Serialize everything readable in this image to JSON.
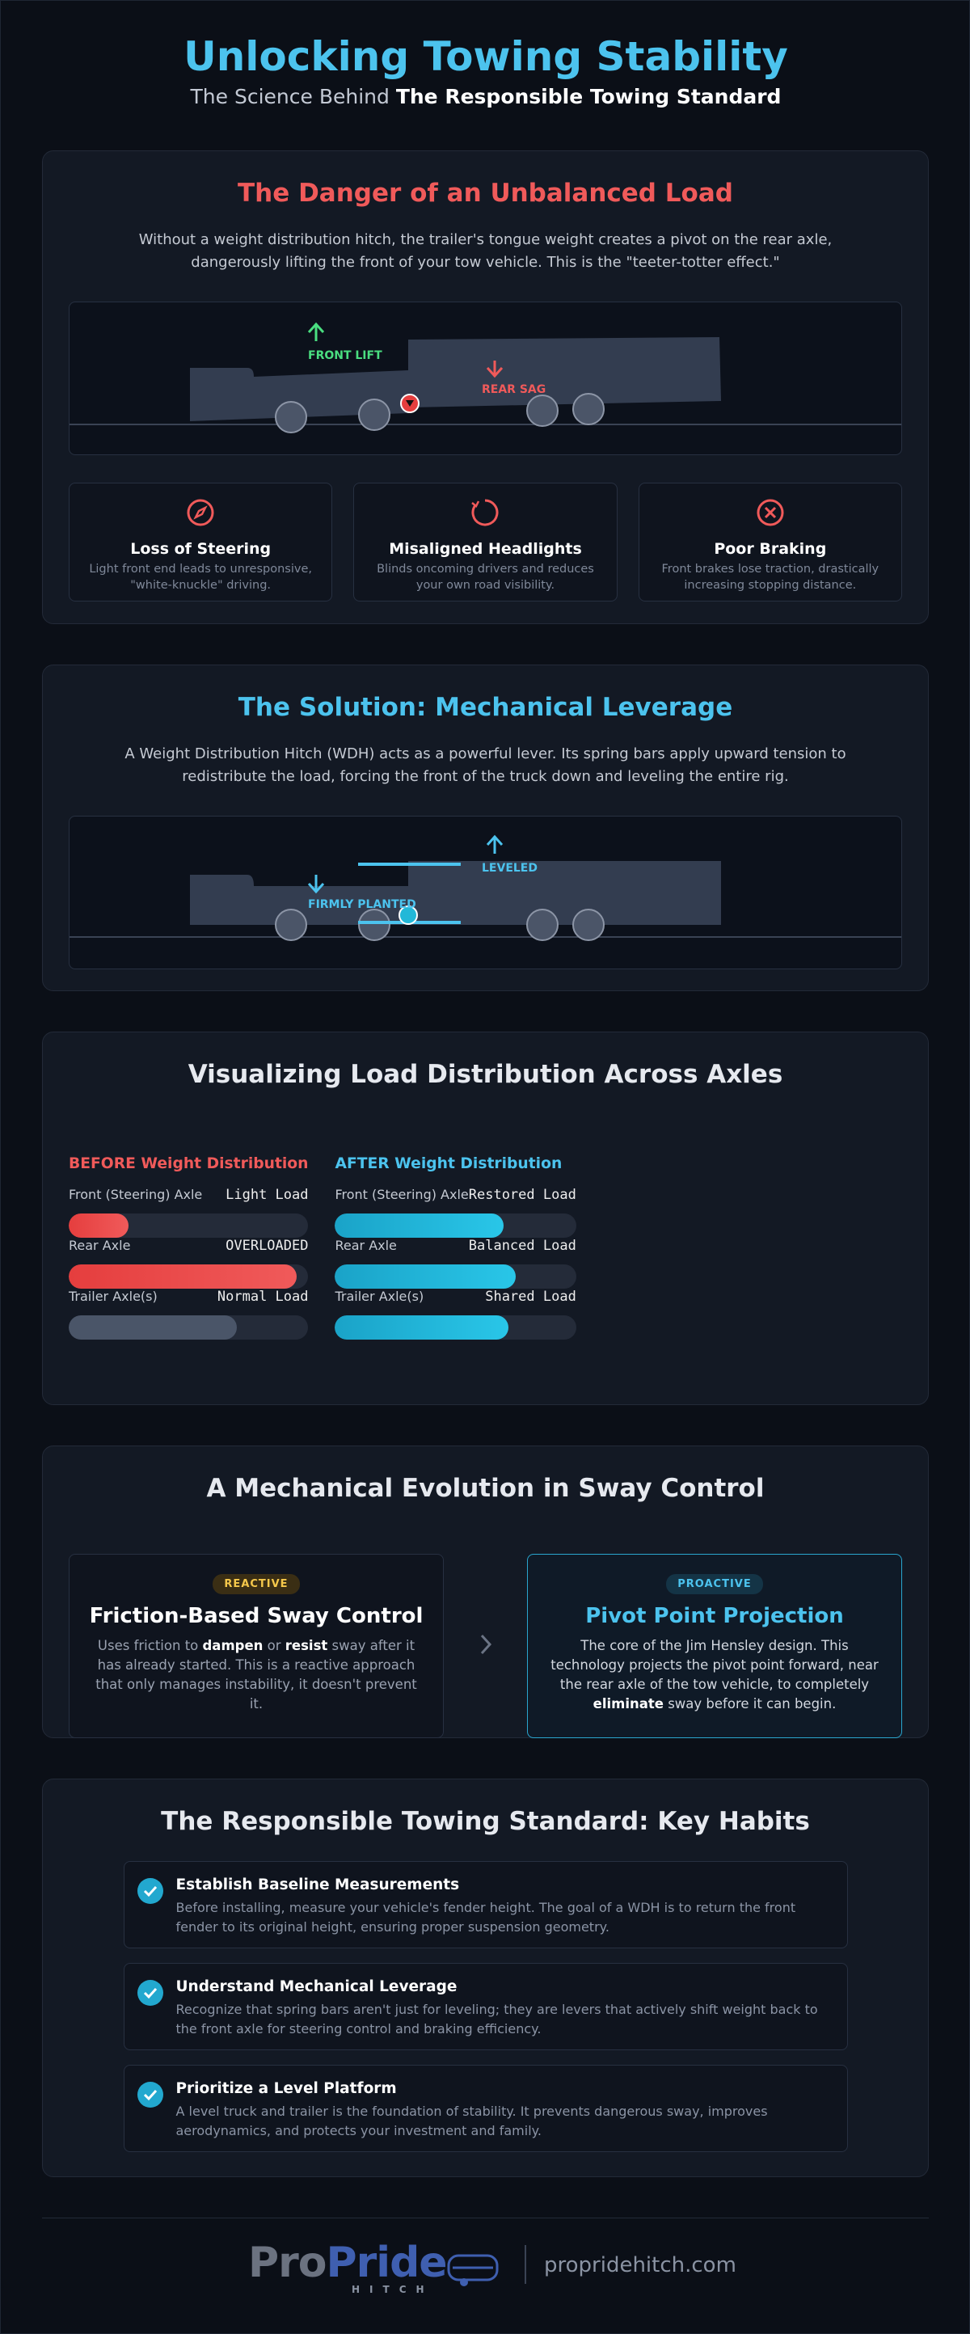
{
  "header": {
    "title": "Unlocking Towing Stability",
    "subtitle_prefix": "The Science Behind",
    "subtitle_bold": "The Responsible Towing Standard"
  },
  "danger": {
    "title": "The Danger of an Unbalanced Load",
    "text": "Without a weight distribution hitch, the trailer's tongue weight creates a pivot on the rear axle, dangerously lifting the front of your tow vehicle. This is the \"teeter-totter effect.\"",
    "front_lift": "FRONT LIFT",
    "rear_sag": "REAR SAG",
    "cards": [
      {
        "title": "Loss of Steering",
        "text": "Light front end leads to unresponsive, \"white-knuckle\" driving."
      },
      {
        "title": "Misaligned Headlights",
        "text": "Blinds oncoming drivers and reduces your own road visibility."
      },
      {
        "title": "Poor Braking",
        "text": "Front brakes lose traction, drastically increasing stopping distance."
      }
    ]
  },
  "solution": {
    "title": "The Solution: Mechanical Leverage",
    "text": "A Weight Distribution Hitch (WDH) acts as a powerful lever. Its spring bars apply upward tension to redistribute the load, forcing the front of the truck down and leveling the entire rig.",
    "leveled": "LEVELED",
    "planted": "FIRMLY PLANTED"
  },
  "load": {
    "title": "Visualizing Load Distribution Across Axles",
    "before": {
      "title": "BEFORE Weight Distribution",
      "rows": [
        {
          "label": "Front (Steering) Axle",
          "status": "Light Load",
          "level": 25
        },
        {
          "label": "Rear Axle",
          "status": "OVERLOADED",
          "level": 95
        },
        {
          "label": "Trailer Axle(s)",
          "status": "Normal Load",
          "level": 70
        }
      ]
    },
    "after": {
      "title": "AFTER Weight Distribution",
      "rows": [
        {
          "label": "Front (Steering) Axle",
          "status": "Restored Load",
          "level": 70
        },
        {
          "label": "Rear Axle",
          "status": "Balanced Load",
          "level": 75
        },
        {
          "label": "Trailer Axle(s)",
          "status": "Shared Load",
          "level": 72
        }
      ]
    }
  },
  "evolution": {
    "title": "A Mechanical Evolution in Sway Control",
    "reactive": {
      "badge": "REACTIVE",
      "title": "Friction-Based Sway Control",
      "text": [
        "Uses friction to ",
        "dampen",
        " or ",
        "resist",
        " sway after it has already started. This is a reactive approach that only manages instability, it doesn't prevent it."
      ]
    },
    "proactive": {
      "badge": "PROACTIVE",
      "title": "Pivot Point Projection",
      "text": [
        "The core of the Jim Hensley design. This technology projects the pivot point forward, near the rear axle of the tow vehicle, to completely ",
        "eliminate",
        " sway before it can begin."
      ]
    }
  },
  "habits": {
    "title": "The Responsible Towing Standard: Key Habits",
    "items": [
      {
        "title": "Establish Baseline Measurements",
        "text": "Before installing, measure your vehicle's fender height. The goal of a WDH is to return the front fender to its original height, ensuring proper suspension geometry."
      },
      {
        "title": "Understand Mechanical Leverage",
        "text": "Recognize that spring bars aren't just for leveling; they are levers that actively shift weight back to the front axle for steering control and braking efficiency."
      },
      {
        "title": "Prioritize a Level Platform",
        "text": "A level truck and trailer is the foundation of stability. It prevents dangerous sway, improves aerodynamics, and protects your investment and family."
      }
    ]
  },
  "footer": {
    "logo_a": "Pro",
    "logo_b": "Pride",
    "logo_c": "HITCH",
    "url": "propridehitch.com"
  }
}
